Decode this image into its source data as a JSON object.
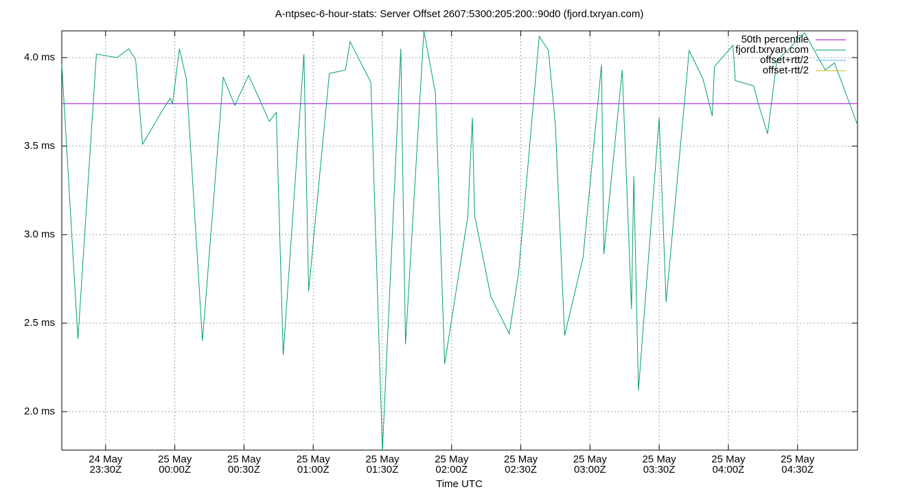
{
  "chart_data": {
    "type": "line",
    "title": "A-ntpsec-6-hour-stats: Server Offset 2607:5300:205:200::90d0 (fjord.txryan.com)",
    "xlabel": "Time UTC",
    "xlim": [
      "24 May 23:11Z",
      "25 May 04:56Z"
    ],
    "xticks": [
      "24 May 23:30Z",
      "25 May 00:00Z",
      "25 May 00:30Z",
      "25 May 01:00Z",
      "25 May 01:30Z",
      "25 May 02:00Z",
      "25 May 02:30Z",
      "25 May 03:00Z",
      "25 May 03:30Z",
      "25 May 04:00Z",
      "25 May 04:30Z"
    ],
    "ylim": [
      1.783,
      4.151
    ],
    "yticks": [
      {
        "value": 2.0,
        "label": "2.0 ms"
      },
      {
        "value": 2.5,
        "label": "2.5 ms"
      },
      {
        "value": 3.0,
        "label": "3.0 ms"
      },
      {
        "value": 3.5,
        "label": "3.5 ms"
      },
      {
        "value": 4.0,
        "label": "4.0 ms"
      }
    ],
    "grid": true,
    "legend": "top-right",
    "x": [
      "24 May 23:11Z",
      "24 May 23:18Z",
      "24 May 23:26Z",
      "24 May 23:35Z",
      "24 May 23:40Z",
      "24 May 23:43Z",
      "24 May 23:46Z",
      "24 May 23:55Z",
      "24 May 23:58Z",
      "24 May 23:59Z",
      "25 May 00:02Z",
      "25 May 00:05Z",
      "25 May 00:12Z",
      "25 May 00:21Z",
      "25 May 00:26Z",
      "25 May 00:32Z",
      "25 May 00:41Z",
      "25 May 00:44Z",
      "25 May 00:47Z",
      "25 May 00:56Z",
      "25 May 00:58Z",
      "25 May 01:07Z",
      "25 May 01:14Z",
      "25 May 01:16Z",
      "25 May 01:25Z",
      "25 May 01:30Z",
      "25 May 01:38Z",
      "25 May 01:40Z",
      "25 May 01:48Z",
      "25 May 01:53Z",
      "25 May 01:57Z",
      "25 May 02:07Z",
      "25 May 02:09Z",
      "25 May 02:10Z",
      "25 May 02:17Z",
      "25 May 02:25Z",
      "25 May 02:29Z",
      "25 May 02:38Z",
      "25 May 02:42Z",
      "25 May 02:45Z",
      "25 May 02:49Z",
      "25 May 02:57Z",
      "25 May 03:05Z",
      "25 May 03:06Z",
      "25 May 03:14Z",
      "25 May 03:18Z",
      "25 May 03:19Z",
      "25 May 03:21Z",
      "25 May 03:30Z",
      "25 May 03:33Z",
      "25 May 03:43Z",
      "25 May 03:49Z",
      "25 May 03:53Z",
      "25 May 03:54Z",
      "25 May 04:02Z",
      "25 May 04:03Z",
      "25 May 04:11Z",
      "25 May 04:13Z",
      "25 May 04:17Z",
      "25 May 04:21Z",
      "25 May 04:33Z",
      "25 May 04:42Z",
      "25 May 04:46Z",
      "25 May 04:56Z"
    ],
    "series": [
      {
        "name": "50th percentile",
        "color": "#9400d3",
        "value": 3.74
      },
      {
        "name": "fjord.txryan.com",
        "color": "#009e73",
        "values": [
          3.96,
          2.41,
          4.02,
          4.0,
          4.05,
          3.99,
          3.51,
          3.71,
          3.77,
          3.74,
          4.05,
          3.88,
          2.4,
          3.89,
          3.73,
          3.9,
          3.64,
          3.69,
          2.32,
          4.02,
          2.68,
          3.91,
          3.93,
          4.09,
          3.86,
          1.78,
          4.05,
          2.38,
          4.15,
          3.8,
          2.27,
          3.1,
          3.66,
          3.11,
          2.65,
          2.44,
          2.78,
          4.12,
          4.04,
          3.62,
          2.43,
          2.87,
          3.96,
          2.89,
          3.93,
          2.58,
          3.33,
          2.12,
          3.66,
          2.62,
          4.04,
          3.88,
          3.67,
          3.95,
          4.07,
          3.87,
          3.84,
          3.74,
          3.57,
          3.98,
          4.14,
          3.93,
          3.97,
          3.62
        ]
      },
      {
        "name": "offset+rtt/2",
        "color": "#56b4e9"
      },
      {
        "name": "offset-rtt/2",
        "color": "#c9b000"
      }
    ]
  }
}
